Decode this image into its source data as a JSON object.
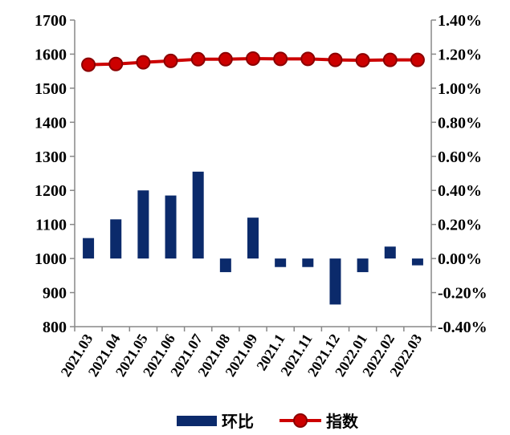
{
  "chart_data": {
    "type": "bar+line",
    "categories": [
      "2021.03",
      "2021.04",
      "2021.05",
      "2021.06",
      "2021.07",
      "2021.08",
      "2021.09",
      "2021.1",
      "2021.11",
      "2021.12",
      "2022.01",
      "2022.02",
      "2022.03"
    ],
    "series": [
      {
        "name": "环比",
        "type": "bar",
        "axis": "right",
        "color": "#0b2a6b",
        "values": [
          0.12,
          0.23,
          0.4,
          0.37,
          0.51,
          -0.08,
          0.24,
          -0.05,
          -0.05,
          -0.27,
          -0.08,
          0.07,
          -0.04
        ]
      },
      {
        "name": "指数",
        "type": "line",
        "axis": "left",
        "color": "#cc0000",
        "values": [
          1569,
          1571,
          1576,
          1580,
          1585,
          1585,
          1587,
          1586,
          1586,
          1583,
          1582,
          1583,
          1583
        ]
      }
    ],
    "left_axis": {
      "min": 800,
      "max": 1700,
      "step": 100,
      "ticks": [
        "800",
        "900",
        "1000",
        "1100",
        "1200",
        "1300",
        "1400",
        "1500",
        "1600",
        "1700"
      ]
    },
    "right_axis": {
      "min": -0.4,
      "max": 1.4,
      "step": 0.2,
      "ticks": [
        "-0.40%",
        "-0.20%",
        "0.00%",
        "0.20%",
        "0.40%",
        "0.60%",
        "0.80%",
        "1.00%",
        "1.20%",
        "1.40%"
      ]
    },
    "grid": false,
    "legend": {
      "position": "bottom",
      "items": [
        "环比",
        "指数"
      ]
    }
  }
}
